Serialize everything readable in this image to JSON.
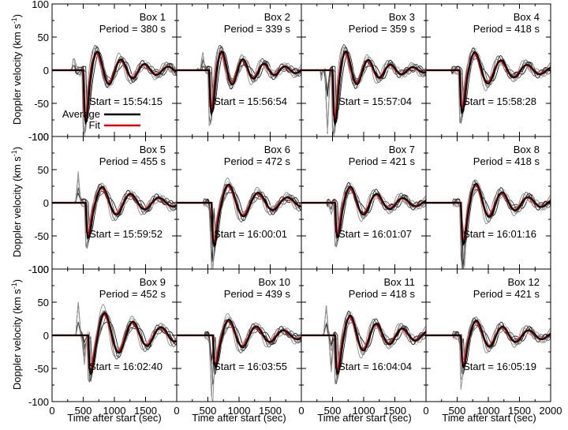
{
  "figure": {
    "ylabel_main": "Doppler velocity (km s",
    "ylabel_sup": "-1",
    "ylabel_close": ")",
    "xlabel": "Time after start (sec)",
    "legend": {
      "average": "Average",
      "fit": "Fit"
    },
    "colors": {
      "average": "#000000",
      "fit": "#e60000",
      "individual": [
        "#1a1a1a",
        "#555555",
        "#8c8c8c",
        "#bdbdbd"
      ]
    }
  },
  "chart_data": {
    "type": "line",
    "xlim": [
      0,
      2000
    ],
    "ylim": [
      -100,
      100
    ],
    "xticks": [
      0,
      500,
      1000,
      1500,
      2000
    ],
    "yticks": [
      -100,
      -50,
      0,
      50,
      100
    ],
    "panels": [
      {
        "box": "Box 1",
        "period_text": "Period = 380 s",
        "start_text": "Start = 15:54:15",
        "period": 380,
        "onset": 520,
        "amp": 38,
        "phase": 1.9,
        "decay": 700,
        "dip": -45,
        "pre": [
          [
            350,
            20
          ],
          [
            450,
            -4
          ]
        ],
        "legend": true
      },
      {
        "box": "Box 2",
        "period_text": "Period = 339 s",
        "start_text": "Start = 15:56:54",
        "period": 339,
        "onset": 540,
        "amp": 38,
        "phase": 1.9,
        "decay": 650,
        "dip": -30,
        "pre": [
          [
            300,
            40
          ],
          [
            420,
            25
          ]
        ]
      },
      {
        "box": "Box 3",
        "period_text": "Period = 359 s",
        "start_text": "Start = 15:57:04",
        "period": 359,
        "onset": 520,
        "amp": 40,
        "phase": 1.9,
        "decay": 600,
        "dip": -45,
        "pre": [
          [
            300,
            -30
          ],
          [
            420,
            -90
          ]
        ]
      },
      {
        "box": "Box 4",
        "period_text": "Period = 418 s",
        "start_text": "Start = 15:58:28",
        "period": 418,
        "onset": 560,
        "amp": 38,
        "phase": 1.9,
        "decay": 700,
        "dip": -28,
        "pre": []
      },
      {
        "box": "Box 5",
        "period_text": "Period = 455 s",
        "start_text": "Start = 15:59:52",
        "period": 455,
        "onset": 560,
        "amp": 33,
        "phase": 1.9,
        "decay": 800,
        "dip": -22,
        "pre": [
          [
            420,
            45
          ]
        ]
      },
      {
        "box": "Box 6",
        "period_text": "Period = 472 s",
        "start_text": "Start = 16:00:01",
        "period": 472,
        "onset": 580,
        "amp": 38,
        "phase": 1.9,
        "decay": 800,
        "dip": -30,
        "pre": [
          [
            560,
            -95
          ]
        ]
      },
      {
        "box": "Box 7",
        "period_text": "Period = 421 s",
        "start_text": "Start = 16:01:07",
        "period": 421,
        "onset": 560,
        "amp": 34,
        "phase": 1.9,
        "decay": 700,
        "dip": -20,
        "pre": [
          [
            480,
            -12
          ]
        ]
      },
      {
        "box": "Box 8",
        "period_text": "Period = 418 s",
        "start_text": "Start = 16:01:16",
        "period": 418,
        "onset": 580,
        "amp": 40,
        "phase": 1.9,
        "decay": 700,
        "dip": -25,
        "pre": [
          [
            600,
            -90
          ]
        ]
      },
      {
        "box": "Box 9",
        "period_text": "Period = 452 s",
        "start_text": "Start = 16:02:40",
        "period": 452,
        "onset": 600,
        "amp": 45,
        "phase": 1.9,
        "decay": 900,
        "dip": -15,
        "pre": [
          [
            420,
            50
          ],
          [
            520,
            -40
          ]
        ]
      },
      {
        "box": "Box 10",
        "period_text": "Period = 439 s",
        "start_text": "Start = 16:03:55",
        "period": 439,
        "onset": 600,
        "amp": 32,
        "phase": 1.9,
        "decay": 800,
        "dip": -18,
        "pre": [
          [
            560,
            -95
          ]
        ]
      },
      {
        "box": "Box 11",
        "period_text": "Period = 418 s",
        "start_text": "Start = 16:04:04",
        "period": 418,
        "onset": 560,
        "amp": 40,
        "phase": 1.9,
        "decay": 800,
        "dip": -20,
        "pre": [
          [
            400,
            45
          ],
          [
            480,
            -50
          ]
        ]
      },
      {
        "box": "Box 12",
        "period_text": "Period = 421 s",
        "start_text": "Start = 16:05:19",
        "period": 421,
        "onset": 580,
        "amp": 30,
        "phase": 1.9,
        "decay": 800,
        "dip": -20,
        "pre": [
          [
            560,
            -25
          ]
        ]
      }
    ]
  }
}
